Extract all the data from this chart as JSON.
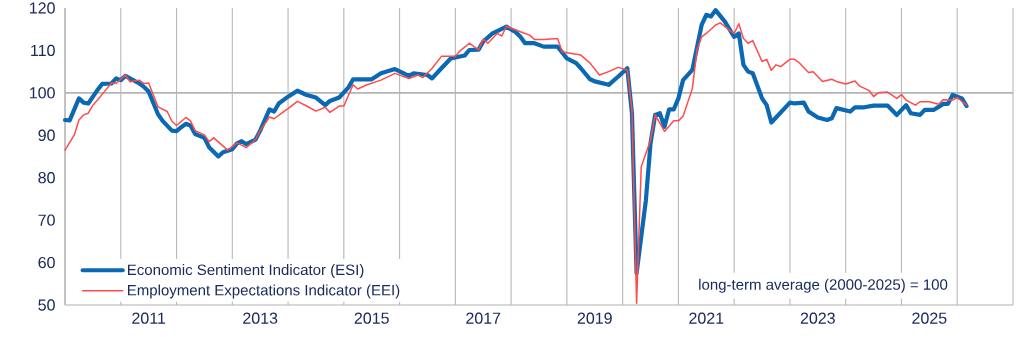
{
  "chart_data": {
    "type": "line",
    "xlim": [
      "2010-01",
      "2027-01"
    ],
    "xticks": [
      {
        "value": "2010-01",
        "label": null
      },
      {
        "value": "2011-01",
        "label": null
      },
      {
        "value": "2012-01",
        "label": null
      },
      {
        "value": "2013-01",
        "label": null
      },
      {
        "value": "2014-01",
        "label": null
      },
      {
        "value": "2015-01",
        "label": null
      },
      {
        "value": "2016-01",
        "label": null
      },
      {
        "value": "2017-01",
        "label": null
      },
      {
        "value": "2018-01",
        "label": null
      },
      {
        "value": "2019-01",
        "label": null
      },
      {
        "value": "2020-01",
        "label": null
      },
      {
        "value": "2021-01",
        "label": null
      },
      {
        "value": "2022-01",
        "label": null
      },
      {
        "value": "2023-01",
        "label": null
      },
      {
        "value": "2024-01",
        "label": null
      },
      {
        "value": "2025-01",
        "label": null
      },
      {
        "value": "2026-01",
        "label": null
      },
      {
        "value": "2027-01",
        "label": null
      },
      {
        "value": "2011-07",
        "label": "2011"
      },
      {
        "value": "2013-07",
        "label": "2013"
      },
      {
        "value": "2015-07",
        "label": "2015"
      },
      {
        "value": "2017-07",
        "label": "2017"
      },
      {
        "value": "2019-07",
        "label": "2019"
      },
      {
        "value": "2021-07",
        "label": "2021"
      },
      {
        "value": "2023-07",
        "label": "2023"
      },
      {
        "value": "2025-07",
        "label": "2025"
      }
    ],
    "ylim": [
      50,
      120
    ],
    "yticks": [
      50,
      60,
      70,
      80,
      90,
      100,
      110,
      120
    ],
    "grid": "x",
    "legend": "bottom left",
    "ref_lines": [
      {
        "axis": "y",
        "value": 100,
        "color": "#b4b4b4"
      }
    ],
    "annotations": [
      "long-term average (2000-2025) = 100"
    ],
    "series": [
      {
        "name": "Economic Sentiment Indicator (ESI)",
        "color": "#0b69b3",
        "x": [
          "2010-01",
          "2010-02",
          "2010-04",
          "2010-05",
          "2010-06",
          "2010-08",
          "2010-09",
          "2010-11",
          "2010-12",
          "2011-01",
          "2011-02",
          "2011-05",
          "2011-06",
          "2011-07",
          "2011-09",
          "2011-10",
          "2011-12",
          "2012-01",
          "2012-02",
          "2012-03",
          "2012-04",
          "2012-05",
          "2012-07",
          "2012-08",
          "2012-10",
          "2012-11",
          "2013-01",
          "2013-02",
          "2013-03",
          "2013-04",
          "2013-06",
          "2013-07",
          "2013-09",
          "2013-10",
          "2013-11",
          "2014-01",
          "2014-03",
          "2014-05",
          "2014-07",
          "2014-09",
          "2014-10",
          "2014-12",
          "2015-02",
          "2015-03",
          "2015-07",
          "2015-09",
          "2015-12",
          "2016-03",
          "2016-04",
          "2016-07",
          "2016-08",
          "2016-10",
          "2016-12",
          "2017-03",
          "2017-04",
          "2017-06",
          "2017-07",
          "2017-09",
          "2017-12",
          "2018-02",
          "2018-03",
          "2018-04",
          "2018-06",
          "2018-08",
          "2018-11",
          "2019-01",
          "2019-03",
          "2019-04",
          "2019-06",
          "2019-07",
          "2019-10",
          "2019-12",
          "2020-02",
          "2020-03",
          "2020-04",
          "2020-06",
          "2020-07",
          "2020-08",
          "2020-09",
          "2020-10",
          "2020-11",
          "2020-12",
          "2021-01",
          "2021-02",
          "2021-04",
          "2021-06",
          "2021-07",
          "2021-08",
          "2021-09",
          "2021-11",
          "2022-01",
          "2022-02",
          "2022-03",
          "2022-04",
          "2022-05",
          "2022-07",
          "2022-08",
          "2022-09",
          "2023-01",
          "2023-02",
          "2023-04",
          "2023-05",
          "2023-07",
          "2023-09",
          "2023-10",
          "2023-11",
          "2024-02",
          "2024-03",
          "2024-05",
          "2024-07",
          "2024-10",
          "2024-12",
          "2025-02",
          "2025-03",
          "2025-05",
          "2025-06",
          "2025-08",
          "2025-10",
          "2025-11",
          "2025-12",
          "2026-02",
          "2026-03"
        ],
        "values": [
          93.6,
          93.5,
          98.7,
          97.7,
          97.5,
          100.7,
          102.1,
          102.2,
          103.4,
          103.0,
          104.0,
          102.2,
          101.4,
          100.3,
          95.0,
          93.4,
          91.1,
          91.0,
          91.9,
          92.7,
          92.3,
          90.3,
          89.4,
          87.2,
          85.0,
          86.0,
          86.7,
          88.1,
          88.6,
          87.9,
          89.0,
          91.1,
          96.1,
          95.6,
          97.5,
          99.1,
          100.5,
          99.5,
          98.9,
          97.1,
          98.1,
          98.9,
          101.3,
          103.2,
          103.2,
          104.6,
          105.6,
          104.0,
          104.6,
          104.2,
          103.4,
          105.8,
          108.1,
          108.8,
          110.1,
          110.2,
          112.1,
          114.0,
          115.6,
          114.3,
          113.2,
          111.7,
          111.7,
          110.9,
          110.9,
          108.1,
          107.0,
          105.8,
          103.2,
          102.7,
          101.9,
          103.8,
          105.8,
          95.2,
          57.5,
          74.7,
          88.1,
          94.8,
          95.2,
          92.0,
          96.1,
          96.1,
          98.7,
          103.0,
          105.4,
          116.0,
          118.4,
          118.0,
          119.5,
          116.8,
          113.2,
          114.0,
          106.6,
          105.0,
          104.6,
          98.7,
          97.1,
          93.0,
          97.7,
          97.5,
          97.7,
          95.6,
          94.2,
          93.6,
          94.0,
          96.4,
          95.6,
          96.6,
          96.6,
          97.0,
          97.0,
          94.8,
          97.1,
          95.2,
          94.8,
          96.0,
          96.0,
          97.4,
          97.4,
          99.5,
          98.7,
          96.9
        ]
      },
      {
        "name": "Employment Expectations Indicator (EEI)",
        "color": "#ff4b4b",
        "x": [
          "2010-01",
          "2010-03",
          "2010-04",
          "2010-05",
          "2010-06",
          "2010-07",
          "2010-08",
          "2010-10",
          "2010-11",
          "2010-12",
          "2011-02",
          "2011-03",
          "2011-05",
          "2011-06",
          "2011-07",
          "2011-09",
          "2011-11",
          "2011-12",
          "2012-01",
          "2012-03",
          "2012-04",
          "2012-05",
          "2012-07",
          "2012-08",
          "2012-09",
          "2012-12",
          "2013-02",
          "2013-04",
          "2013-06",
          "2013-07",
          "2013-09",
          "2013-10",
          "2013-12",
          "2014-01",
          "2014-03",
          "2014-05",
          "2014-07",
          "2014-09",
          "2014-10",
          "2014-12",
          "2015-01",
          "2015-03",
          "2015-04",
          "2015-06",
          "2015-09",
          "2015-12",
          "2016-03",
          "2016-05",
          "2016-06",
          "2016-08",
          "2016-10",
          "2017-01",
          "2017-02",
          "2017-04",
          "2017-06",
          "2017-07",
          "2017-08",
          "2017-10",
          "2017-11",
          "2017-12",
          "2018-03",
          "2018-05",
          "2018-06",
          "2018-08",
          "2018-11",
          "2018-12",
          "2019-02",
          "2019-04",
          "2019-06",
          "2019-08",
          "2019-10",
          "2019-12",
          "2020-02",
          "2020-03",
          "2020-04",
          "2020-05",
          "2020-07",
          "2020-08",
          "2020-10",
          "2020-12",
          "2021-01",
          "2021-02",
          "2021-04",
          "2021-05",
          "2021-06",
          "2021-07",
          "2021-09",
          "2021-10",
          "2021-12",
          "2022-01",
          "2022-02",
          "2022-03",
          "2022-04",
          "2022-05",
          "2022-07",
          "2022-08",
          "2022-09",
          "2022-10",
          "2022-11",
          "2023-01",
          "2023-02",
          "2023-03",
          "2023-05",
          "2023-06",
          "2023-08",
          "2023-10",
          "2023-11",
          "2024-01",
          "2024-03",
          "2024-04",
          "2024-06",
          "2024-07",
          "2024-08",
          "2024-10",
          "2024-12",
          "2025-01",
          "2025-02",
          "2025-04",
          "2025-05",
          "2025-07",
          "2025-09",
          "2025-10",
          "2025-12",
          "2026-01",
          "2026-03"
        ],
        "values": [
          86.5,
          90.1,
          93.6,
          94.8,
          95.2,
          97.1,
          98.3,
          101.0,
          102.3,
          102.2,
          104.2,
          102.6,
          103.0,
          102.2,
          102.3,
          96.7,
          95.6,
          93.3,
          92.3,
          94.2,
          93.4,
          91.1,
          90.1,
          88.5,
          89.4,
          86.5,
          88.2,
          87.1,
          89.0,
          91.1,
          94.3,
          93.9,
          95.5,
          96.3,
          98.0,
          96.9,
          95.7,
          96.6,
          95.4,
          96.9,
          96.9,
          101.9,
          100.9,
          101.9,
          103.0,
          104.6,
          103.4,
          104.2,
          103.6,
          105.8,
          108.6,
          108.6,
          109.9,
          111.7,
          110.1,
          112.7,
          111.7,
          114.0,
          113.4,
          115.7,
          114.4,
          113.6,
          112.6,
          112.6,
          112.8,
          109.7,
          109.3,
          108.9,
          107.0,
          104.2,
          105.0,
          106.0,
          105.4,
          96.0,
          50.4,
          82.6,
          88.8,
          94.8,
          90.9,
          93.4,
          93.4,
          94.5,
          101.0,
          110.1,
          113.2,
          114.0,
          116.0,
          116.5,
          114.8,
          114.0,
          116.3,
          112.8,
          111.7,
          112.3,
          107.4,
          107.9,
          105.3,
          106.6,
          106.2,
          107.9,
          107.9,
          107.1,
          104.8,
          105.0,
          102.7,
          103.2,
          102.7,
          102.1,
          102.8,
          101.6,
          100.6,
          99.1,
          100.0,
          100.2,
          98.7,
          99.6,
          98.3,
          97.1,
          97.9,
          97.9,
          97.3,
          98.4,
          98.3,
          98.9,
          97.1
        ]
      }
    ]
  }
}
